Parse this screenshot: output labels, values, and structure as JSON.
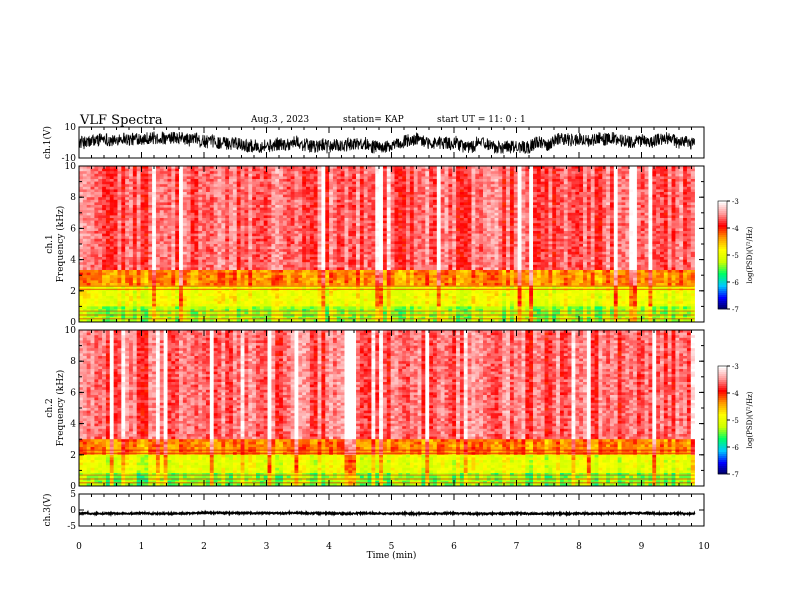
{
  "header": {
    "title": "VLF Spectra",
    "date": "Aug.3 , 2023",
    "station": "station= KAP",
    "start": "start UT = 11: 0 : 1"
  },
  "chart_data": [
    {
      "type": "line",
      "name": "ch1-waveform",
      "ylabel": "ch.1(V)",
      "ylim": [
        -10,
        10
      ],
      "yticks": [
        "10",
        "-10"
      ],
      "xlim": [
        0,
        10
      ],
      "data_end_min": 9.85,
      "level_range": [
        -6,
        6
      ]
    },
    {
      "type": "heatmap",
      "name": "ch1-spectrogram",
      "ylabel": "ch.1 Frequency (kHz)",
      "ylim": [
        0,
        10
      ],
      "yticks": [
        "0",
        "2",
        "4",
        "6",
        "8",
        "10"
      ],
      "xlim": [
        0,
        10
      ],
      "colorbar": {
        "label": "log(PSD)(V²/Hz)",
        "ticks": [
          "-3",
          "-4",
          "-5",
          "-6",
          "-7"
        ],
        "range": [
          -7,
          -3
        ]
      },
      "bands_khz": [
        {
          "from": 0.0,
          "to": 1.0,
          "level": -5.3
        },
        {
          "from": 1.0,
          "to": 2.4,
          "level": -4.9
        },
        {
          "from": 2.4,
          "to": 3.4,
          "level": -4.3
        },
        {
          "from": 3.4,
          "to": 10.0,
          "level": -3.6
        }
      ]
    },
    {
      "type": "heatmap",
      "name": "ch2-spectrogram",
      "ylabel": "ch.2 Frequency (kHz)",
      "ylim": [
        0,
        10
      ],
      "yticks": [
        "0",
        "2",
        "4",
        "6",
        "8",
        "10"
      ],
      "xlim": [
        0,
        10
      ],
      "colorbar": {
        "label": "log(PSD)(V²/Hz)",
        "ticks": [
          "-3",
          "-4",
          "-5",
          "-6",
          "-7"
        ],
        "range": [
          -7,
          -3
        ]
      },
      "bands_khz": [
        {
          "from": 0.0,
          "to": 0.8,
          "level": -5.4
        },
        {
          "from": 0.8,
          "to": 2.0,
          "level": -5.0
        },
        {
          "from": 2.0,
          "to": 3.0,
          "level": -4.3
        },
        {
          "from": 3.0,
          "to": 10.0,
          "level": -3.6
        }
      ]
    },
    {
      "type": "line",
      "name": "ch3-waveform",
      "ylabel": "ch.3(V)",
      "ylim": [
        -5,
        5
      ],
      "yticks": [
        "5",
        "0",
        "-5"
      ],
      "xlim": [
        0,
        10
      ],
      "data_end_min": 9.85,
      "level_range": [
        -1.3,
        -0.7
      ]
    }
  ],
  "xaxis": {
    "label": "Time (min)",
    "ticks": [
      "0",
      "1",
      "2",
      "3",
      "4",
      "5",
      "6",
      "7",
      "8",
      "9",
      "10"
    ]
  },
  "colors": {
    "waveform": "#000000",
    "colormap": [
      "#000055",
      "#0000ff",
      "#00c8ff",
      "#00ff66",
      "#ccff00",
      "#ffff00",
      "#ff9900",
      "#ff0000",
      "#ff9999",
      "#ffffff"
    ]
  }
}
